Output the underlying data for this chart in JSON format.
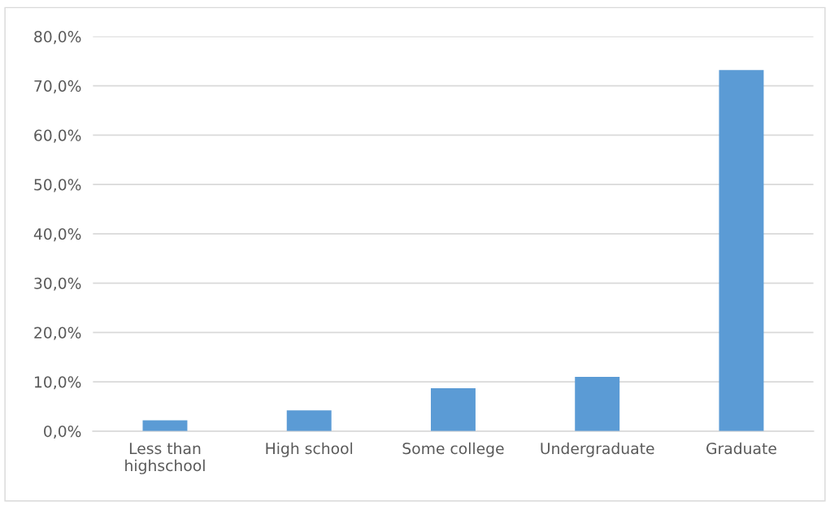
{
  "chart_data": {
    "type": "bar",
    "categories": [
      "Less than\nhighschool",
      "High school",
      "Some college",
      "Undergraduate",
      "Graduate"
    ],
    "values": [
      2.2,
      4.2,
      8.7,
      11.0,
      73.2
    ],
    "color": "#5b9bd5",
    "ylim": [
      0,
      80
    ],
    "yticks": [
      {
        "value": 0,
        "label": "0,0%"
      },
      {
        "value": 10,
        "label": "10,0%"
      },
      {
        "value": 20,
        "label": "20,0%"
      },
      {
        "value": 30,
        "label": "30,0%"
      },
      {
        "value": 40,
        "label": "40,0%"
      },
      {
        "value": 50,
        "label": "50,0%"
      },
      {
        "value": 60,
        "label": "60,0%"
      },
      {
        "value": 70,
        "label": "70,0%"
      },
      {
        "value": 80,
        "label": "80,0%"
      }
    ],
    "grid": "y",
    "legend": false
  }
}
